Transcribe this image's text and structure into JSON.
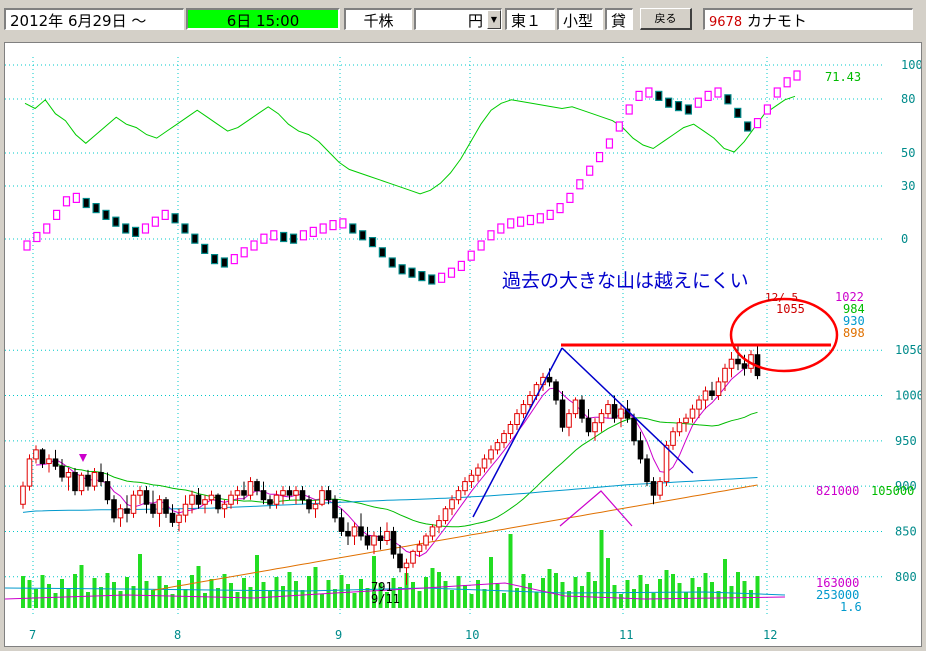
{
  "toolbar": {
    "date_range": "2012年 6月29日 ～",
    "time": "6日 15:00",
    "unit": "千株",
    "currency_value": "",
    "currency": "円",
    "market": "東１",
    "size": "小型",
    "lending": "貸",
    "back_button": "戻る",
    "code": "9678",
    "name": "カナモト"
  },
  "colors": {
    "up_candle": "#e00000",
    "down_candle": "#000000",
    "ma_short": "#cc00cc",
    "ma_mid": "#00bb00",
    "ma_long": "#0099cc",
    "ma_longest": "#e07000",
    "volume": "#22dd22",
    "oscillator": "#00cc00",
    "pf_up": "#ff00ff",
    "pf_down": "#000000",
    "annotation": "#0000cc",
    "resistance": "#ff0000"
  },
  "chart_data": {
    "type": "candlestick",
    "annotation": "過去の大きな山は越えにくい",
    "x_month_labels": [
      "7",
      "8",
      "9",
      "10",
      "11",
      "12"
    ],
    "price_axis_labels": [
      "1050",
      "1000",
      "950",
      "900",
      "850",
      "800"
    ],
    "price_ylim": [
      760,
      1080
    ],
    "osc_axis_labels": [
      "100",
      "80",
      "50",
      "30",
      "0"
    ],
    "osc_ylim": [
      -20,
      105
    ],
    "osc_value_label": "71.43",
    "latest_date_label": "12/ 5",
    "price_value_labels": [
      "1022",
      "1055",
      "984",
      "930",
      "898"
    ],
    "volume_labels": [
      "821000",
      "105000",
      "163000",
      "253000",
      "1.6"
    ],
    "low_date_label": "9/11",
    "low_price_label": "791",
    "resistance_level": 1030,
    "ohlc": [
      [
        880,
        905,
        875,
        900
      ],
      [
        900,
        935,
        895,
        930
      ],
      [
        930,
        945,
        925,
        940
      ],
      [
        940,
        942,
        920,
        925
      ],
      [
        925,
        935,
        915,
        930
      ],
      [
        930,
        940,
        918,
        922
      ],
      [
        922,
        930,
        905,
        910
      ],
      [
        910,
        920,
        895,
        915
      ],
      [
        915,
        920,
        890,
        895
      ],
      [
        895,
        915,
        890,
        912
      ],
      [
        912,
        918,
        895,
        900
      ],
      [
        900,
        920,
        895,
        915
      ],
      [
        915,
        925,
        900,
        905
      ],
      [
        905,
        915,
        880,
        885
      ],
      [
        885,
        890,
        860,
        865
      ],
      [
        865,
        880,
        855,
        875
      ],
      [
        875,
        890,
        860,
        870
      ],
      [
        870,
        895,
        865,
        890
      ],
      [
        890,
        900,
        880,
        895
      ],
      [
        895,
        900,
        870,
        880
      ],
      [
        880,
        895,
        865,
        870
      ],
      [
        870,
        890,
        855,
        885
      ],
      [
        885,
        888,
        865,
        870
      ],
      [
        870,
        880,
        855,
        860
      ],
      [
        860,
        875,
        850,
        868
      ],
      [
        868,
        890,
        860,
        880
      ],
      [
        880,
        895,
        870,
        890
      ],
      [
        890,
        898,
        875,
        880
      ],
      [
        880,
        890,
        870,
        885
      ],
      [
        885,
        895,
        880,
        890
      ],
      [
        890,
        892,
        870,
        875
      ],
      [
        875,
        885,
        865,
        880
      ],
      [
        880,
        895,
        875,
        890
      ],
      [
        890,
        900,
        880,
        895
      ],
      [
        895,
        905,
        885,
        890
      ],
      [
        890,
        910,
        885,
        905
      ],
      [
        905,
        908,
        890,
        895
      ],
      [
        895,
        905,
        880,
        885
      ],
      [
        885,
        890,
        875,
        880
      ],
      [
        880,
        895,
        875,
        890
      ],
      [
        890,
        900,
        880,
        895
      ],
      [
        895,
        900,
        885,
        890
      ],
      [
        890,
        900,
        880,
        895
      ],
      [
        895,
        900,
        880,
        885
      ],
      [
        885,
        890,
        870,
        875
      ],
      [
        875,
        885,
        865,
        880
      ],
      [
        880,
        900,
        878,
        895
      ],
      [
        895,
        900,
        880,
        885
      ],
      [
        885,
        890,
        860,
        865
      ],
      [
        865,
        875,
        845,
        850
      ],
      [
        850,
        860,
        835,
        845
      ],
      [
        845,
        860,
        835,
        855
      ],
      [
        855,
        870,
        840,
        845
      ],
      [
        845,
        855,
        830,
        835
      ],
      [
        835,
        850,
        825,
        845
      ],
      [
        845,
        855,
        830,
        840
      ],
      [
        840,
        860,
        835,
        850
      ],
      [
        850,
        855,
        820,
        825
      ],
      [
        825,
        835,
        805,
        810
      ],
      [
        810,
        820,
        791,
        815
      ],
      [
        815,
        830,
        810,
        828
      ],
      [
        828,
        840,
        822,
        835
      ],
      [
        835,
        848,
        830,
        845
      ],
      [
        845,
        858,
        840,
        855
      ],
      [
        855,
        868,
        848,
        862
      ],
      [
        862,
        878,
        858,
        875
      ],
      [
        875,
        890,
        868,
        885
      ],
      [
        885,
        900,
        880,
        895
      ],
      [
        895,
        910,
        890,
        905
      ],
      [
        905,
        918,
        898,
        912
      ],
      [
        912,
        925,
        905,
        920
      ],
      [
        920,
        935,
        915,
        930
      ],
      [
        930,
        945,
        925,
        940
      ],
      [
        940,
        952,
        935,
        948
      ],
      [
        948,
        962,
        942,
        958
      ],
      [
        958,
        972,
        952,
        968
      ],
      [
        968,
        985,
        962,
        980
      ],
      [
        980,
        995,
        975,
        990
      ],
      [
        990,
        1005,
        985,
        1000
      ],
      [
        1000,
        1015,
        995,
        1012
      ],
      [
        1012,
        1025,
        1005,
        1020
      ],
      [
        1020,
        1030,
        1010,
        1015
      ],
      [
        1015,
        1018,
        990,
        995
      ],
      [
        995,
        1005,
        960,
        965
      ],
      [
        965,
        985,
        955,
        980
      ],
      [
        980,
        998,
        975,
        995
      ],
      [
        995,
        1000,
        970,
        975
      ],
      [
        975,
        985,
        955,
        960
      ],
      [
        960,
        975,
        950,
        970
      ],
      [
        970,
        985,
        960,
        980
      ],
      [
        980,
        995,
        975,
        990
      ],
      [
        990,
        1000,
        970,
        975
      ],
      [
        975,
        990,
        965,
        985
      ],
      [
        985,
        995,
        970,
        975
      ],
      [
        975,
        980,
        945,
        950
      ],
      [
        950,
        960,
        925,
        930
      ],
      [
        930,
        935,
        900,
        905
      ],
      [
        905,
        910,
        880,
        890
      ],
      [
        890,
        910,
        885,
        905
      ],
      [
        905,
        950,
        900,
        945
      ],
      [
        945,
        965,
        940,
        960
      ],
      [
        960,
        975,
        955,
        970
      ],
      [
        970,
        980,
        960,
        975
      ],
      [
        975,
        990,
        970,
        985
      ],
      [
        985,
        1000,
        975,
        995
      ],
      [
        995,
        1010,
        985,
        1005
      ],
      [
        1005,
        1015,
        995,
        1000
      ],
      [
        1000,
        1020,
        995,
        1015
      ],
      [
        1015,
        1035,
        1005,
        1030
      ],
      [
        1030,
        1048,
        1020,
        1040
      ],
      [
        1040,
        1055,
        1028,
        1035
      ],
      [
        1035,
        1045,
        1022,
        1030
      ],
      [
        1030,
        1050,
        1025,
        1045
      ],
      [
        1045,
        1055,
        1018,
        1022
      ]
    ]
  }
}
